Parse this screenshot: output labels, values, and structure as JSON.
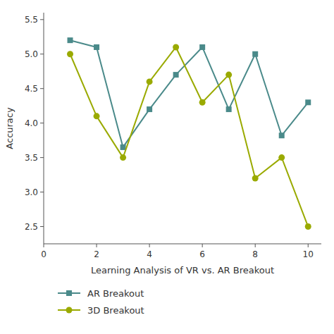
{
  "chart_data": {
    "type": "line",
    "xlabel": "Learning Analysis of VR vs. AR Breakout",
    "ylabel": "Accuracy",
    "x": [
      1,
      2,
      3,
      4,
      5,
      6,
      7,
      8,
      9,
      10
    ],
    "series": [
      {
        "name": "AR Breakout",
        "color": "#4a8a8a",
        "marker": "square",
        "values": [
          5.2,
          5.1,
          3.65,
          4.2,
          4.7,
          5.1,
          4.2,
          5.0,
          3.82,
          4.3
        ]
      },
      {
        "name": "3D Breakout",
        "color": "#9aaa00",
        "marker": "circle",
        "values": [
          5.0,
          4.1,
          3.5,
          4.6,
          5.1,
          4.3,
          4.7,
          3.2,
          3.5,
          2.5
        ]
      }
    ],
    "xlim": [
      0,
      10.5
    ],
    "ylim": [
      2.25,
      5.6
    ],
    "xticks": [
      0,
      2,
      4,
      6,
      8,
      10
    ],
    "yticks": [
      2.5,
      {
        "value": 3,
        "label": "3.0"
      },
      3.5,
      {
        "value": 4,
        "label": "4.0"
      },
      4.5,
      {
        "value": 5,
        "label": "5.0"
      },
      5.5
    ],
    "grid": false,
    "legend": "bottom"
  }
}
